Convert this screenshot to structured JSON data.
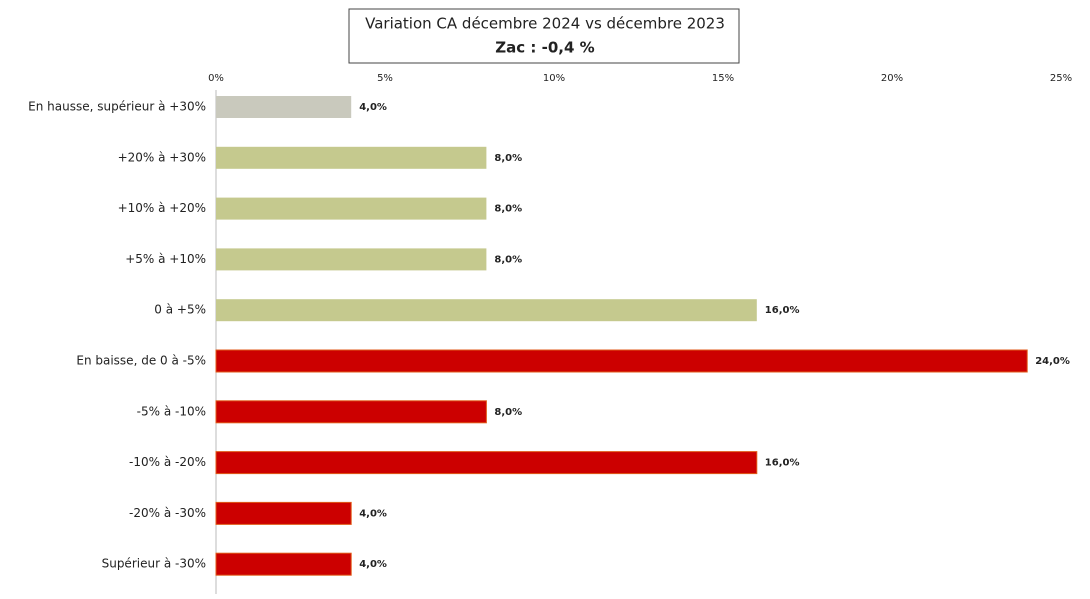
{
  "chart_data": {
    "type": "barh",
    "title": "Variation CA décembre 2024 vs décembre 2023",
    "subtitle": "Zac : -0,4 %",
    "categories": [
      "En hausse, supérieur à +30%",
      "+20% à +30%",
      "+10% à +20%",
      "+5% à +10%",
      "0 à +5%",
      "En baisse, de 0 à -5%",
      "-5% à -10%",
      "-10% à -20%",
      "-20% à -30%",
      "Supérieur à -30%"
    ],
    "values": [
      4,
      8,
      8,
      8,
      16,
      24,
      8,
      16,
      4,
      4
    ],
    "value_labels": [
      "4,0%",
      "8,0%",
      "8,0%",
      "8,0%",
      "16,0%",
      "24,0%",
      "8,0%",
      "16,0%",
      "4,0%",
      "4,0%"
    ],
    "colors": [
      "#c9c9bd",
      "#c5c98e",
      "#c5c98e",
      "#c5c98e",
      "#c5c98e",
      "#cc0000",
      "#cc0000",
      "#cc0000",
      "#cc0000",
      "#cc0000"
    ],
    "xlim": [
      0,
      25
    ],
    "xticks": [
      {
        "value": 0,
        "label": "0%"
      },
      {
        "value": 5,
        "label": "5%"
      },
      {
        "value": 10,
        "label": "10%"
      },
      {
        "value": 15,
        "label": "15%"
      },
      {
        "value": 20,
        "label": "20%"
      },
      {
        "value": 25,
        "label": "25%"
      }
    ]
  }
}
